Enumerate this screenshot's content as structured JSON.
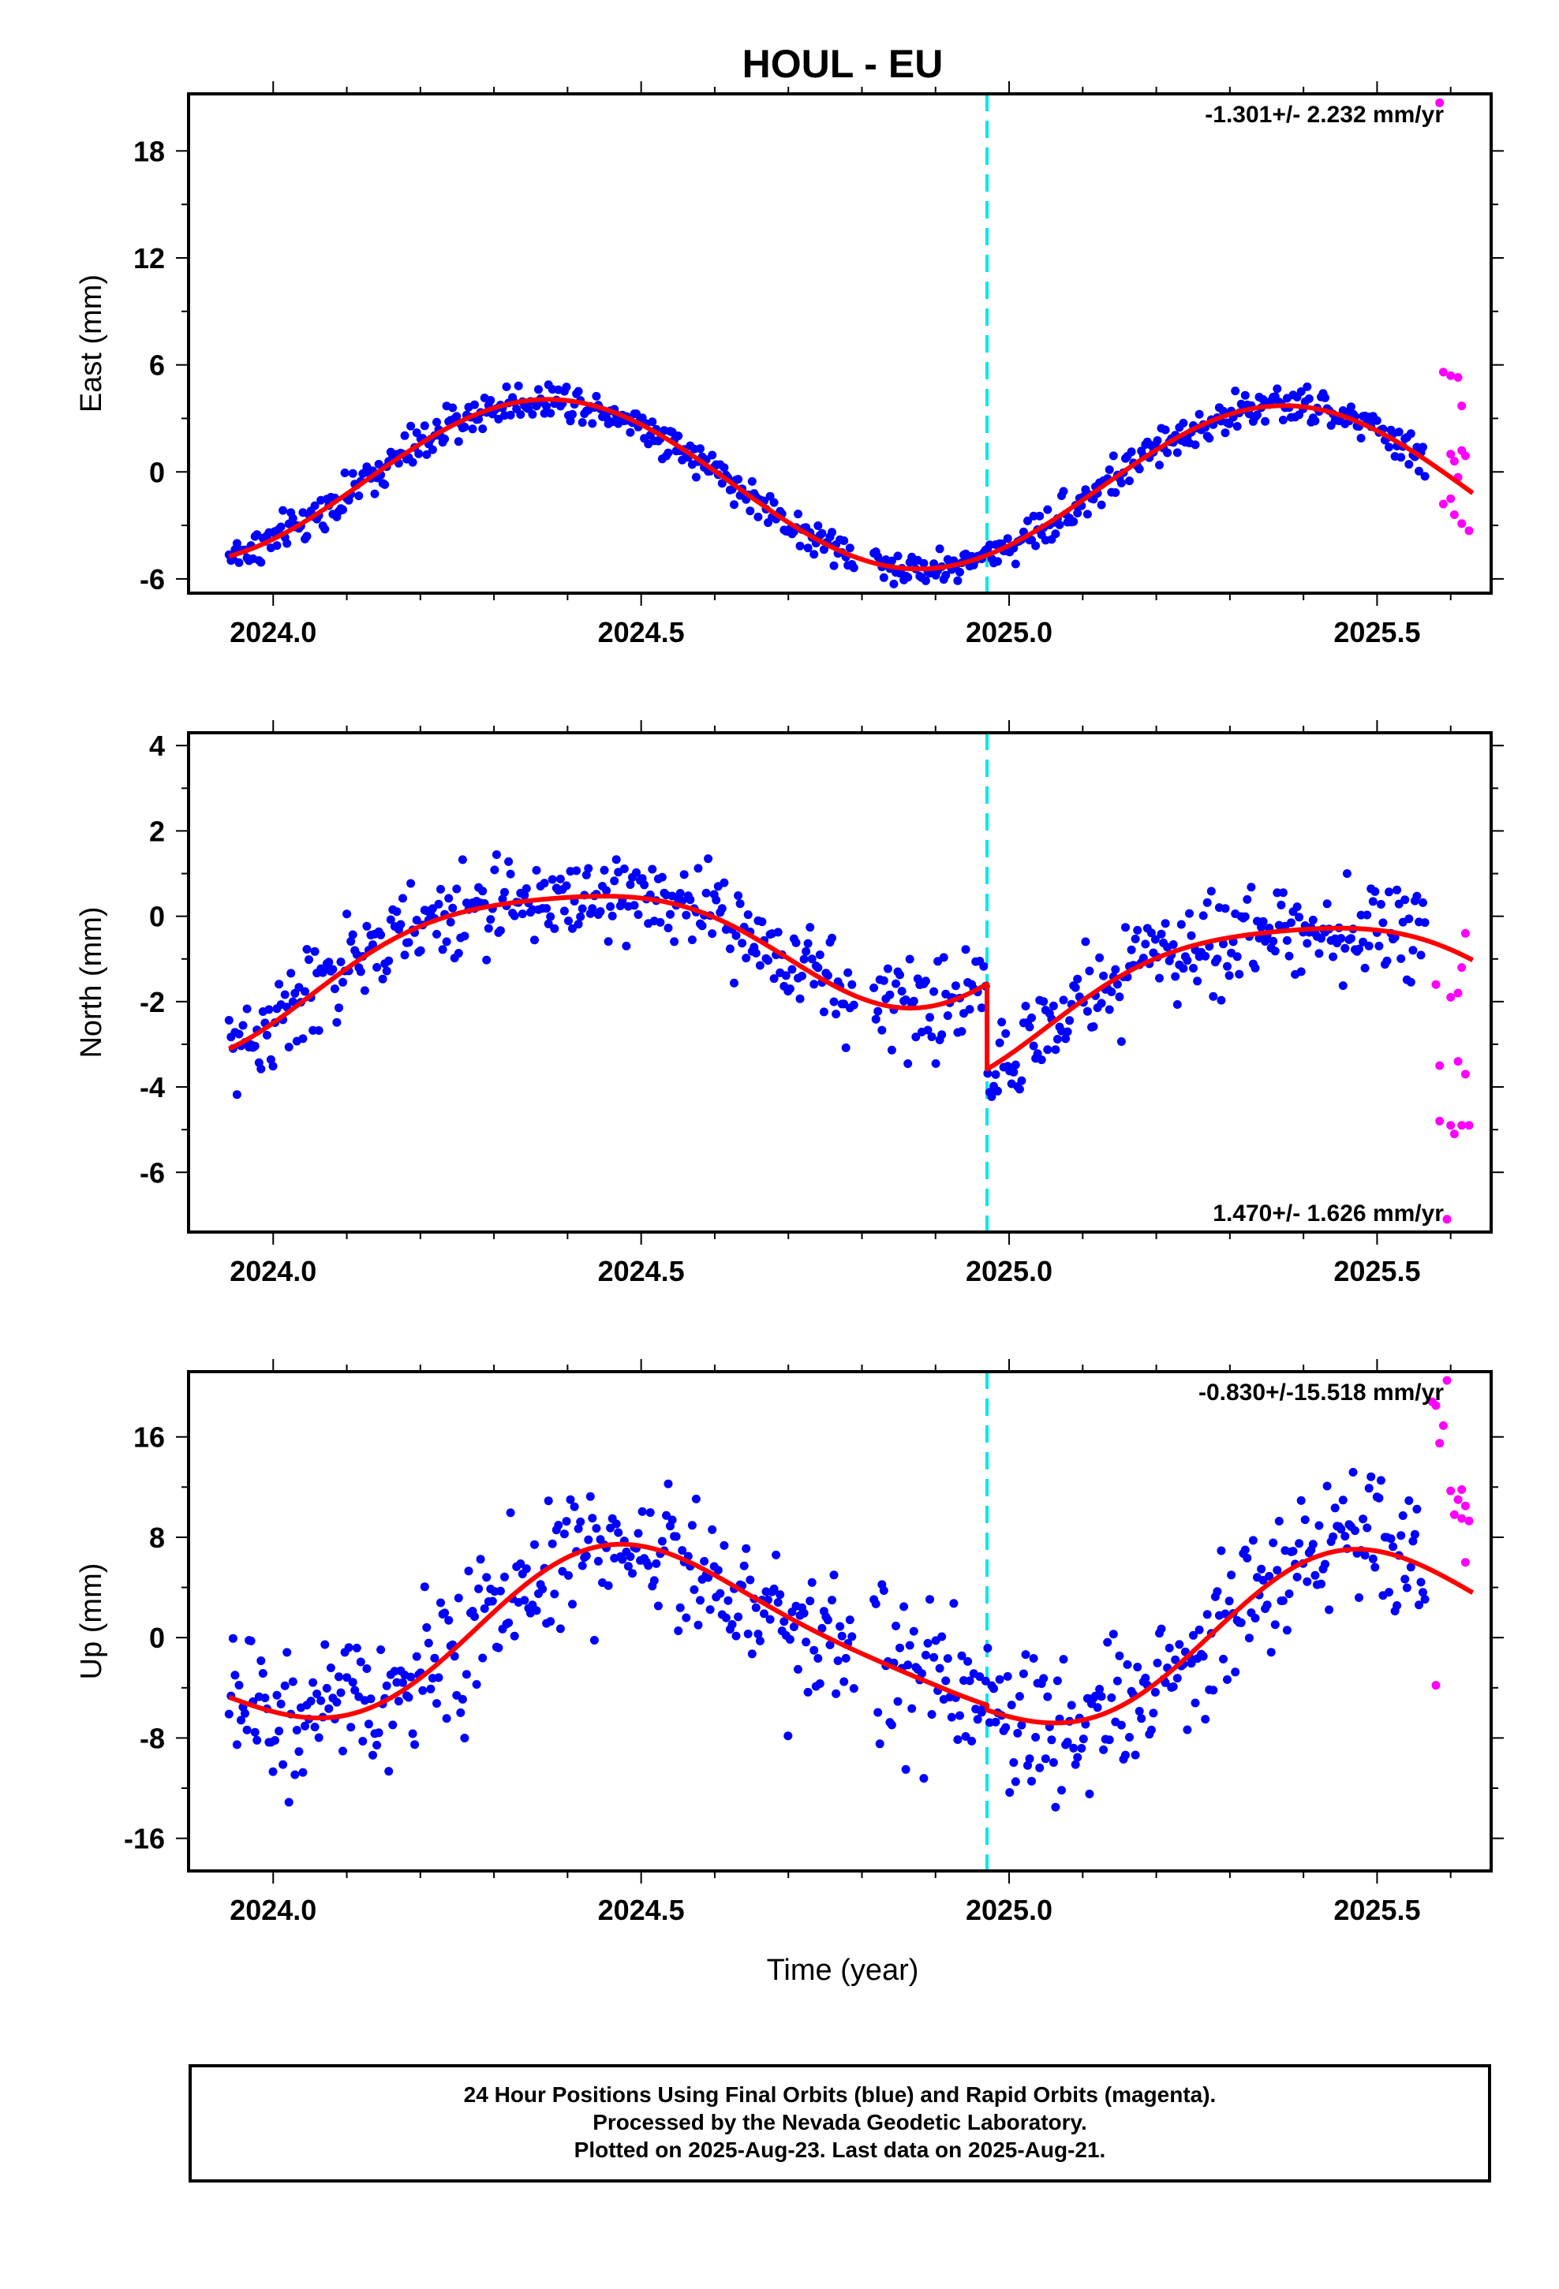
{
  "title": "HOUL - EU",
  "xlabel": "Time (year)",
  "colors": {
    "final": "#0000ff",
    "rapid": "#ff00ff",
    "model": "#ff0000",
    "event": "#00e5ee"
  },
  "footer": {
    "line1": "24 Hour Positions Using Final Orbits (blue) and Rapid Orbits (magenta).",
    "line2": "Processed by the Nevada Geodetic Laboratory.",
    "line3": "Plotted on 2025-Aug-23. Last data on 2025-Aug-21."
  },
  "chart_data": [
    {
      "type": "scatter",
      "ylabel": "East (mm)",
      "rate_label": "-1.301+/- 2.232 mm/yr",
      "rate_position": "top-right",
      "xlim": [
        2023.885,
        2025.655
      ],
      "ylim": [
        -6.8,
        21.2
      ],
      "xticks": [
        "2024.0",
        "2024.5",
        "2025.0",
        "2025.5"
      ],
      "xtick_values": [
        2024.0,
        2024.5,
        2025.0,
        2025.5
      ],
      "yticks": [
        "-6",
        "0",
        "6",
        "12",
        "18"
      ],
      "ytick_values": [
        -6,
        0,
        6,
        12,
        18
      ],
      "event_x": 2024.97,
      "model": {
        "offset": -0.75,
        "trend": -0.35,
        "annual": [
          3.3,
          -3.3
        ],
        "semiannual": [
          0.0,
          0.0
        ],
        "step": 0.0
      },
      "noise": 0.75,
      "rapid_points": [
        [
          2025.585,
          20.7
        ],
        [
          2025.59,
          5.6
        ],
        [
          2025.6,
          5.4
        ],
        [
          2025.61,
          5.3
        ],
        [
          2025.615,
          3.7
        ],
        [
          2025.6,
          1.0
        ],
        [
          2025.605,
          0.6
        ],
        [
          2025.61,
          -0.3
        ],
        [
          2025.615,
          1.2
        ],
        [
          2025.62,
          0.9
        ],
        [
          2025.59,
          -1.8
        ],
        [
          2025.6,
          -1.5
        ],
        [
          2025.605,
          -2.4
        ],
        [
          2025.615,
          -2.9
        ],
        [
          2025.625,
          -3.3
        ]
      ]
    },
    {
      "type": "scatter",
      "ylabel": "North (mm)",
      "rate_label": "1.470+/- 1.626 mm/yr",
      "rate_position": "bottom-right",
      "xlim": [
        2023.885,
        2025.655
      ],
      "ylim": [
        -7.4,
        4.3
      ],
      "xticks": [
        "2024.0",
        "2024.5",
        "2025.0",
        "2025.5"
      ],
      "xtick_values": [
        2024.0,
        2024.5,
        2025.0,
        2025.5
      ],
      "yticks": [
        "-6",
        "-4",
        "-2",
        "0",
        "2",
        "4"
      ],
      "ytick_values": [
        -6,
        -4,
        -2,
        0,
        2,
        4
      ],
      "event_x": 2024.97,
      "model": {
        "offset": -0.35,
        "trend": 1.25,
        "annual": [
          1.1,
          -1.15
        ],
        "semiannual": [
          0.3,
          0.0
        ],
        "step": -2.0
      },
      "noise": 0.75,
      "rapid_points": [
        [
          2025.58,
          -1.6
        ],
        [
          2025.6,
          -1.9
        ],
        [
          2025.61,
          -1.8
        ],
        [
          2025.615,
          -1.2
        ],
        [
          2025.62,
          -0.4
        ],
        [
          2025.585,
          -3.5
        ],
        [
          2025.61,
          -3.4
        ],
        [
          2025.62,
          -3.7
        ],
        [
          2025.585,
          -4.8
        ],
        [
          2025.6,
          -4.9
        ],
        [
          2025.605,
          -5.1
        ],
        [
          2025.615,
          -4.9
        ],
        [
          2025.625,
          -4.9
        ],
        [
          2025.595,
          -7.1
        ]
      ]
    },
    {
      "type": "scatter",
      "ylabel": "Up (mm)",
      "rate_label": "-0.830+/-15.518 mm/yr",
      "rate_position": "top-right",
      "xlim": [
        2023.885,
        2025.655
      ],
      "ylim": [
        -18.6,
        21.2
      ],
      "xticks": [
        "2024.0",
        "2024.5",
        "2025.0",
        "2025.5"
      ],
      "xtick_values": [
        2024.0,
        2024.5,
        2025.0,
        2025.5
      ],
      "yticks": [
        "-16",
        "-8",
        "0",
        "8",
        "16"
      ],
      "ytick_values": [
        -16,
        -8,
        0,
        8,
        16
      ],
      "event_x": 2024.97,
      "model": {
        "offset": 0.2,
        "trend": 0.0,
        "annual": [
          -0.4,
          -6.6
        ],
        "semiannual": [
          -1.0,
          0.5
        ],
        "step": -0.4
      },
      "noise": 4.0,
      "rapid_points": [
        [
          2025.595,
          20.5
        ],
        [
          2025.575,
          18.8
        ],
        [
          2025.58,
          18.5
        ],
        [
          2025.59,
          16.9
        ],
        [
          2025.585,
          15.5
        ],
        [
          2025.6,
          11.7
        ],
        [
          2025.61,
          11.0
        ],
        [
          2025.615,
          11.8
        ],
        [
          2025.62,
          10.5
        ],
        [
          2025.605,
          9.8
        ],
        [
          2025.615,
          9.5
        ],
        [
          2025.625,
          9.3
        ],
        [
          2025.62,
          6.0
        ],
        [
          2025.58,
          -3.8
        ]
      ]
    }
  ]
}
